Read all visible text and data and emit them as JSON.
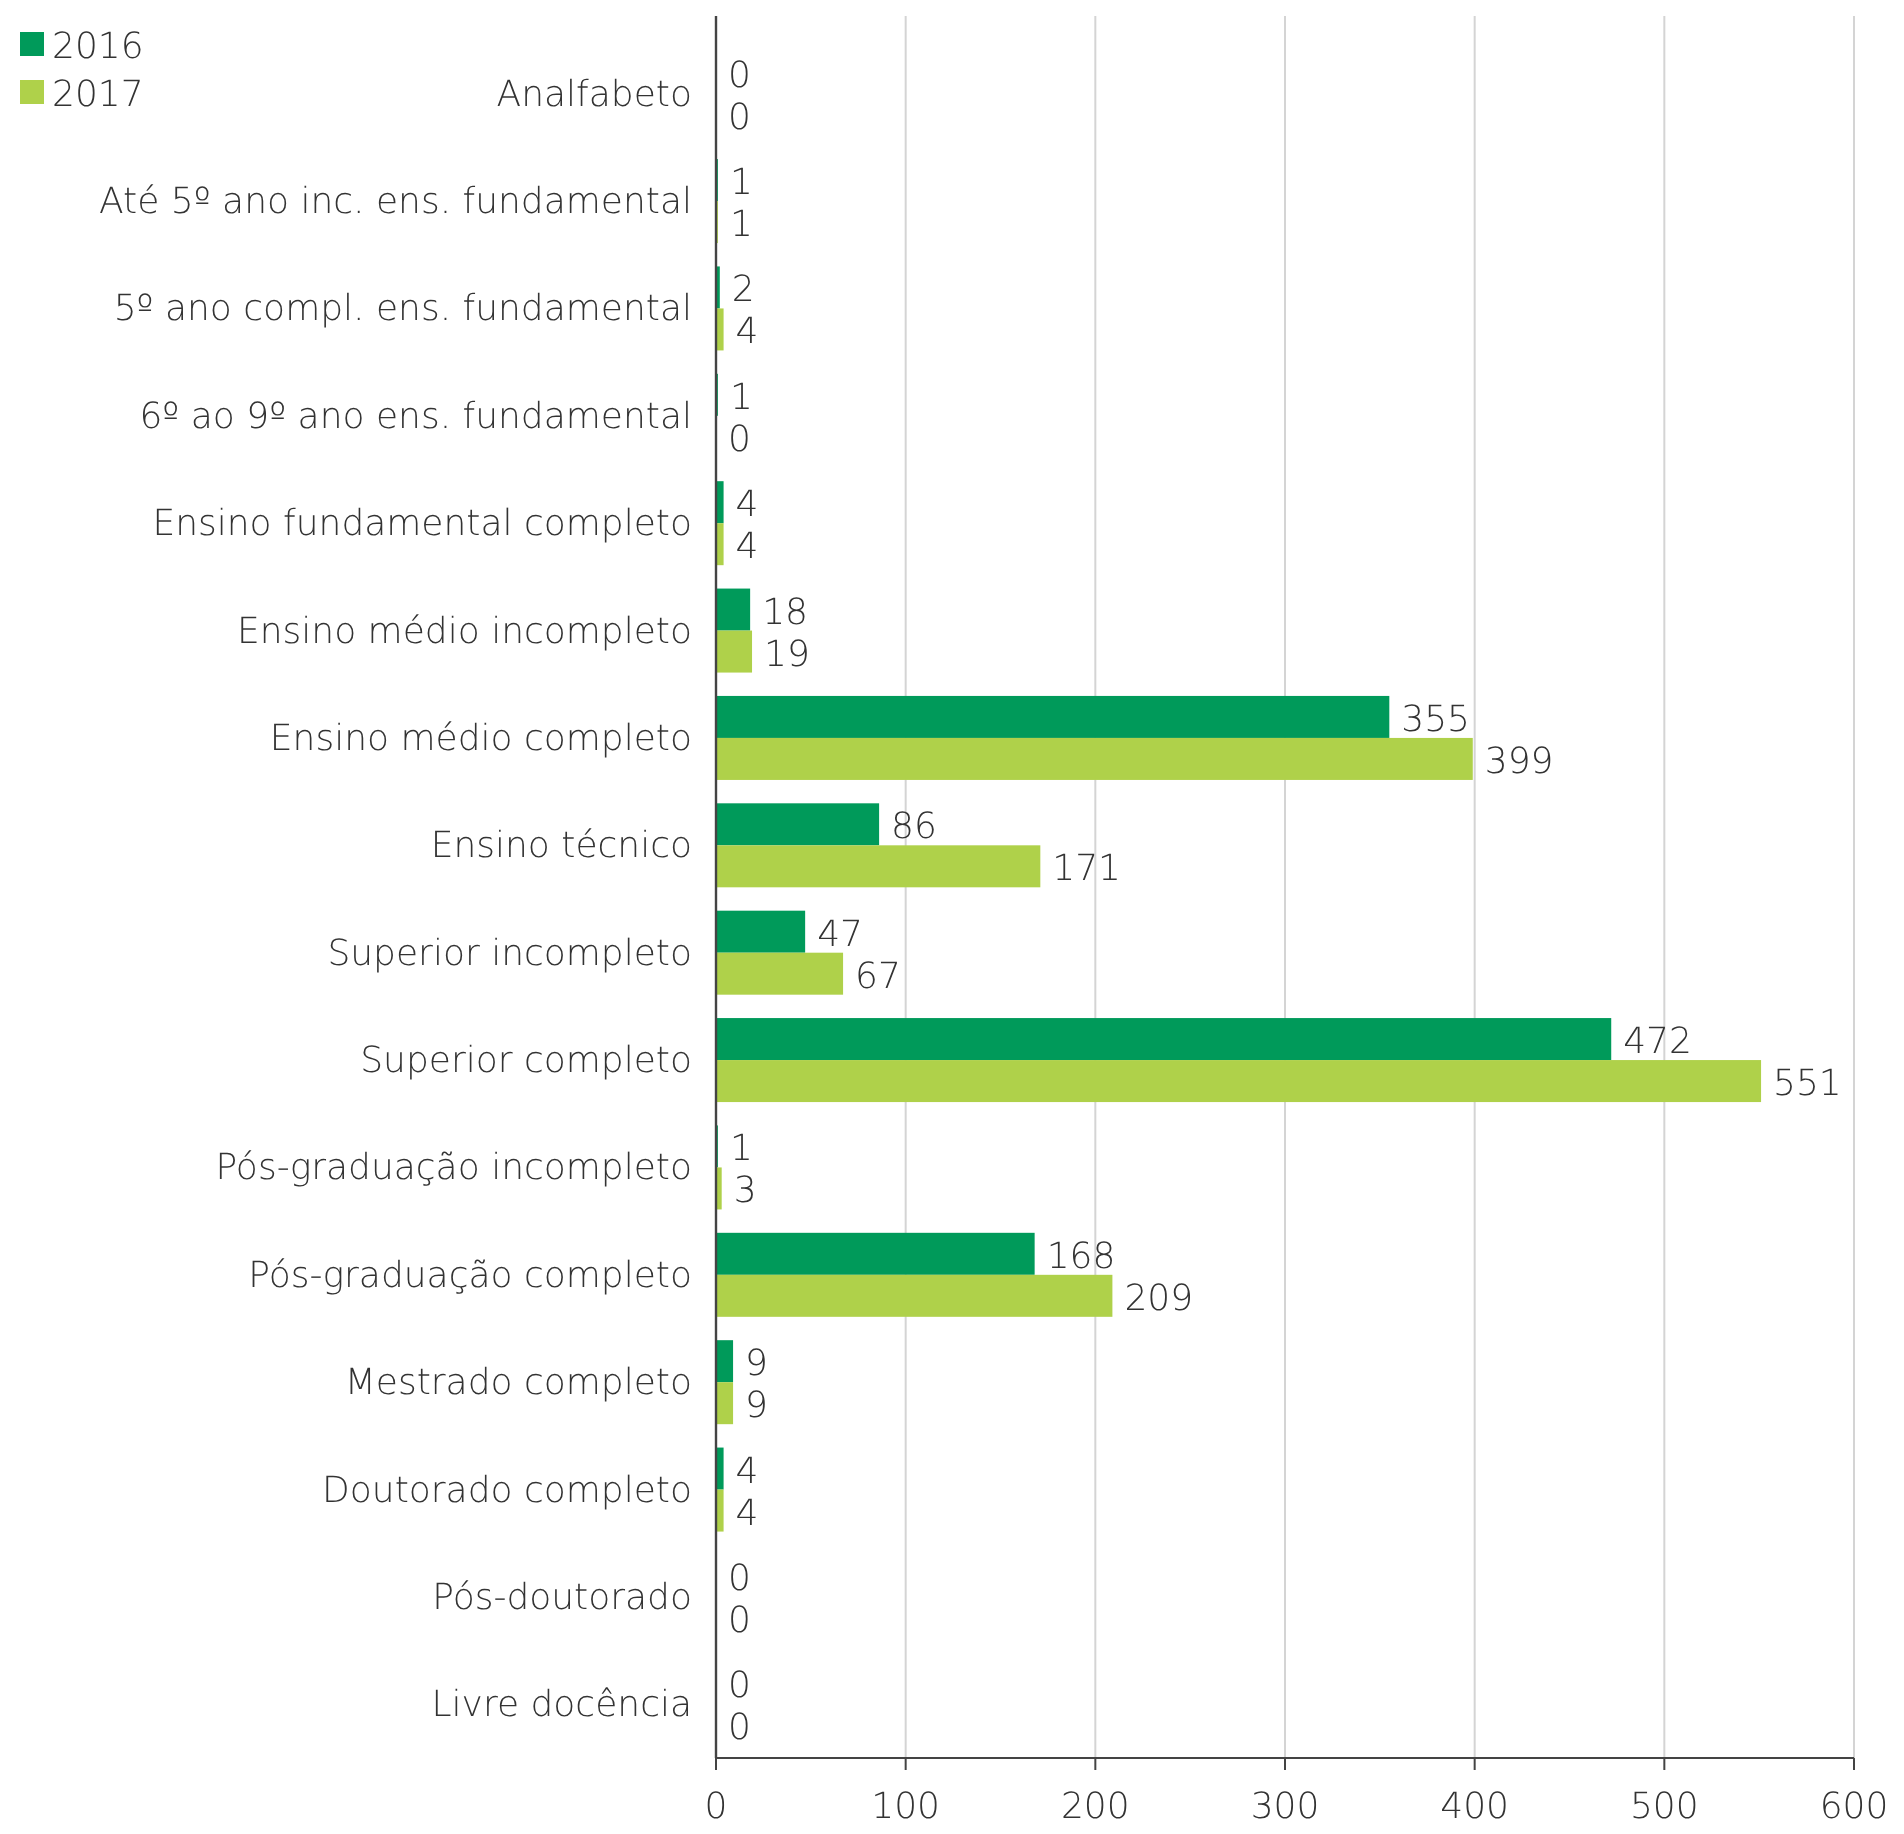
{
  "chart_data": {
    "type": "bar",
    "orientation": "horizontal",
    "categories": [
      "Analfabeto",
      "Até 5º ano inc. ens. fundamental",
      "5º ano compl. ens. fundamental",
      "6º ao 9º ano ens. fundamental",
      "Ensino fundamental completo",
      "Ensino médio incompleto",
      "Ensino médio completo",
      "Ensino técnico",
      "Superior incompleto",
      "Superior completo",
      "Pós-graduação incompleto",
      "Pós-graduação completo",
      "Mestrado completo",
      "Doutorado completo",
      "Pós-doutorado",
      "Livre docência"
    ],
    "series": [
      {
        "name": "2016",
        "color": "#009a5a",
        "values": [
          0,
          1,
          2,
          1,
          4,
          18,
          355,
          86,
          47,
          472,
          1,
          168,
          9,
          4,
          0,
          0
        ]
      },
      {
        "name": "2017",
        "color": "#afd14a",
        "values": [
          0,
          1,
          4,
          0,
          4,
          19,
          399,
          171,
          67,
          551,
          3,
          209,
          9,
          4,
          0,
          0
        ]
      }
    ],
    "xlim": [
      0,
      600
    ],
    "xticks": [
      0,
      100,
      200,
      300,
      400,
      500,
      600
    ],
    "grid": "x",
    "legend": "top left",
    "data_labels": true
  }
}
